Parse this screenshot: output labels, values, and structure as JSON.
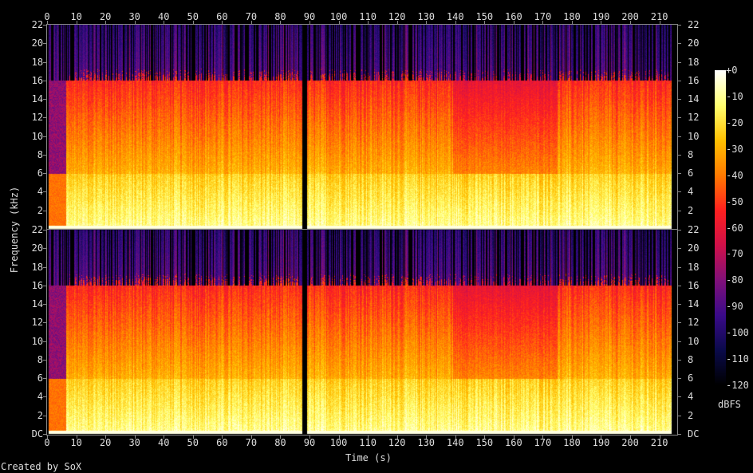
{
  "chart_data": {
    "type": "heatmap",
    "xlabel": "Time (s)",
    "ylabel": "Frequency (kHz)",
    "x_ticks": [
      "0",
      "10",
      "20",
      "30",
      "40",
      "50",
      "60",
      "70",
      "80",
      "90",
      "100",
      "110",
      "120",
      "130",
      "140",
      "150",
      "160",
      "170",
      "180",
      "190",
      "200",
      "210"
    ],
    "y_ticks_top_channel": [
      "22",
      "20",
      "18",
      "16",
      "14",
      "12",
      "10",
      "8",
      "6",
      "4",
      "2"
    ],
    "y_ticks_bottom_channel": [
      "22",
      "20",
      "18",
      "16",
      "14",
      "12",
      "10",
      "8",
      "6",
      "4",
      "2",
      "DC"
    ],
    "xlim": [
      0,
      216
    ],
    "ylim": [
      0,
      22
    ],
    "channels": 2,
    "colorbar": {
      "label": "dBFS",
      "range": [
        -120,
        0
      ],
      "ticks": [
        "+0",
        "-10",
        "-20",
        "-30",
        "-40",
        "-50",
        "-60",
        "-70",
        "-80",
        "-90",
        "-100",
        "-110",
        "-120"
      ],
      "colors": [
        "#000000",
        "#0a0a4a",
        "#3a0a8a",
        "#80107a",
        "#d0104a",
        "#ff2020",
        "#ff7a00",
        "#ffc000",
        "#ffff70",
        "#ffffff"
      ]
    },
    "features": {
      "lowpass_cutoff_khz": 16,
      "silence_gap_s": [
        87.5,
        89
      ],
      "track_end_s": 213
    }
  },
  "footer": {
    "credit": "Created by SoX"
  }
}
